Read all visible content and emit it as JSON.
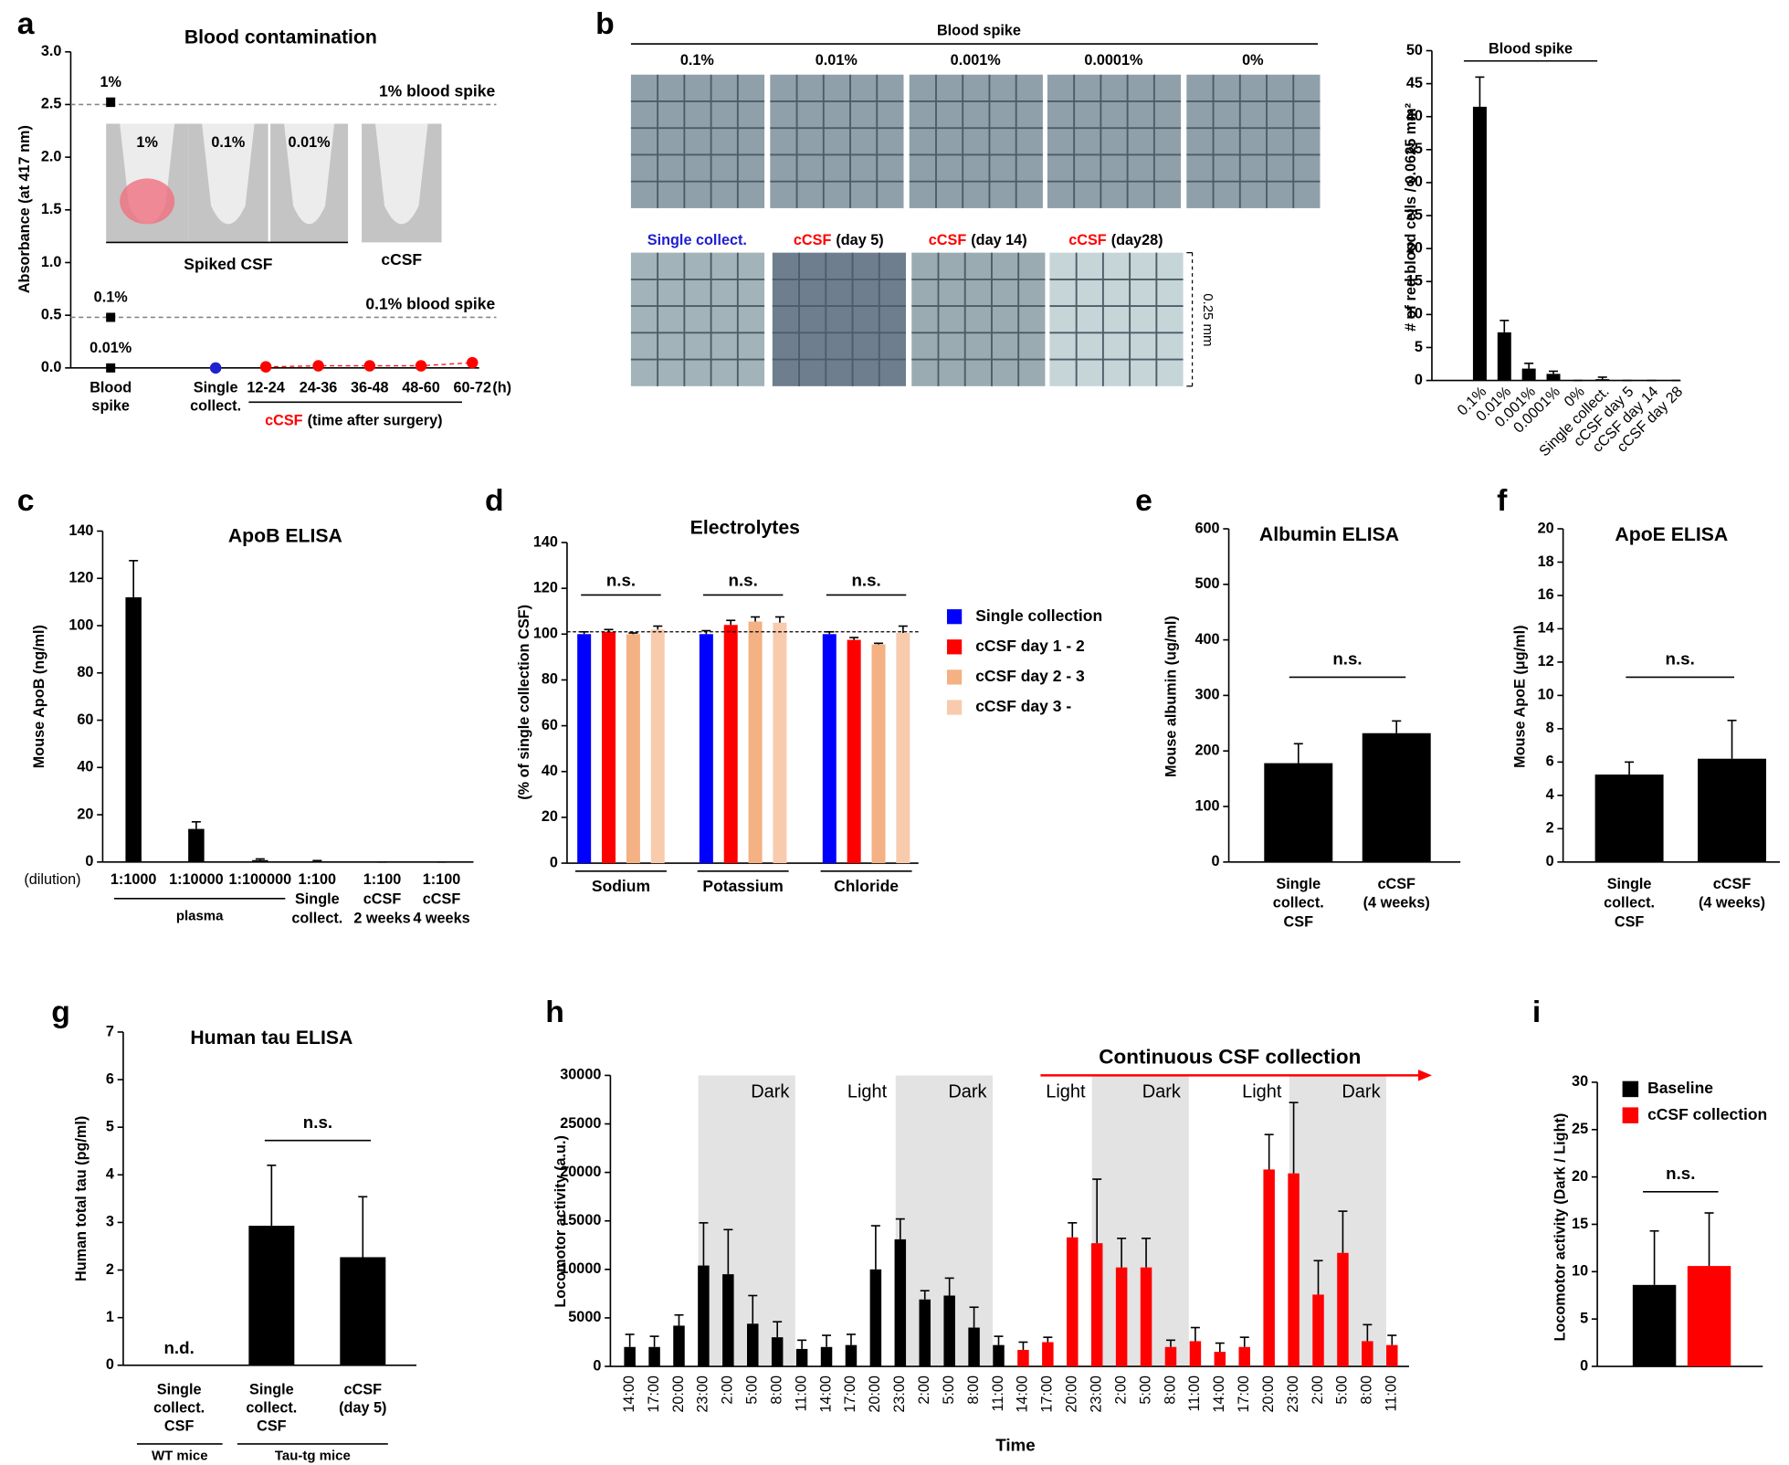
{
  "chart_data": [
    {
      "panel": "a",
      "type": "dot",
      "title": "Blood contamination",
      "ylabel": "Absorbance (at 417 nm)",
      "ylim": [
        0,
        3
      ],
      "yticks": [
        {
          "value": 0,
          "label": "0.0"
        },
        0.5,
        {
          "value": 1,
          "label": "1.0"
        },
        1.5,
        {
          "value": 2,
          "label": "2.0"
        },
        2.5,
        {
          "value": 3,
          "label": "3.0"
        }
      ],
      "categories": [
        [
          {
            "text": "Blood"
          },
          {
            "text": "spike"
          }
        ],
        [
          {
            "text": "Single",
            "color": "#2020d0"
          },
          {
            "text": "collect.",
            "color": "#2020d0"
          }
        ],
        [
          {
            "text": "12-24"
          }
        ],
        [
          {
            "text": "24-36"
          }
        ],
        [
          {
            "text": "36-48"
          }
        ],
        [
          {
            "text": "48-60"
          }
        ],
        [
          {
            "text": "60-72"
          }
        ]
      ],
      "x_unit": "(h)",
      "group_label": [
        {
          "text": "cCSF",
          "color": "#ff0000"
        },
        {
          "text": "(time after surgery)"
        }
      ],
      "spike_values": [
        2.52,
        0.48,
        0
      ],
      "spike_errors": [
        0.04,
        0.01,
        0.01
      ],
      "spike_labels": [
        "1%",
        "0.1%",
        "0.01%"
      ],
      "single_value": 0,
      "ccsf_values": [
        0.01,
        0.02,
        0.02,
        0.02,
        0.05
      ],
      "colors": {
        "spike": "#000000",
        "single": "#2020d0",
        "ccsf": "#ff0000"
      },
      "reference_lines": [
        {
          "value": 2.5,
          "label": "1% blood spike"
        },
        {
          "value": 0.48,
          "label": "0.1% blood spike"
        }
      ],
      "inset_labels": [
        "1%",
        "0.1%",
        "0.01%"
      ],
      "inset_groups": [
        {
          "text": "Spiked CSF"
        },
        {
          "text": "cCSF",
          "color": "#ff0000"
        }
      ]
    },
    {
      "panel": "b",
      "type": "micrograph",
      "header": "Blood spike",
      "top_labels": [
        "0.1%",
        "0.01%",
        "0.001%",
        "0.0001%",
        "0%"
      ],
      "bottom_labels": [
        [
          {
            "text": "Single collect.",
            "color": "#2020d0"
          }
        ],
        [
          {
            "text": "cCSF",
            "color": "#ff0000"
          },
          {
            "text": "(day 5)"
          }
        ],
        [
          {
            "text": "cCSF",
            "color": "#ff0000"
          },
          {
            "text": "(day 14)"
          }
        ],
        [
          {
            "text": "cCSF",
            "color": "#ff0000"
          },
          {
            "text": "(day28)"
          }
        ]
      ],
      "scale_label": "0.25 mm"
    },
    {
      "type": "bar",
      "ylabel": "# of red blood cells / 0.0625 mm²",
      "ylim": [
        0,
        50
      ],
      "yticks": [
        0,
        5,
        10,
        15,
        20,
        25,
        30,
        35,
        40,
        45,
        50
      ],
      "categories": [
        "0.1%",
        "0.01%",
        "0.001%",
        "0.0001%",
        "0%",
        "Single collect.",
        "cCSF day 5",
        "cCSF day 14",
        "cCSF day 28"
      ],
      "values": [
        41.5,
        7.3,
        1.8,
        1.0,
        0,
        0.2,
        0,
        0,
        0
      ],
      "errors": [
        4.5,
        1.8,
        0.8,
        0.4,
        0,
        0.3,
        0,
        0,
        0
      ],
      "color": "#000000",
      "label_rotation": -45,
      "bracket_label": "Blood spike"
    },
    {
      "panel": "c",
      "type": "bar",
      "title": "ApoB ELISA",
      "ylabel": "Mouse ApoB (ng/ml)",
      "ylim": [
        0,
        140
      ],
      "yticks": [
        0,
        20,
        40,
        60,
        80,
        100,
        120,
        140
      ],
      "x_prefix": "(dilution)",
      "categories": [
        [
          {
            "text": "1:1000"
          }
        ],
        [
          {
            "text": "1:10000"
          }
        ],
        [
          {
            "text": "1:100000"
          }
        ],
        [
          {
            "text": "1:100"
          },
          {
            "text": "Single",
            "color": "#2020d0"
          },
          {
            "text": "collect.",
            "color": "#2020d0"
          }
        ],
        [
          {
            "text": "1:100"
          },
          {
            "text": "cCSF",
            "color": "#ff0000"
          },
          {
            "text": "2 weeks"
          }
        ],
        [
          {
            "text": "1:100"
          },
          {
            "text": "cCSF",
            "color": "#ff0000"
          },
          {
            "text": "4 weeks"
          }
        ]
      ],
      "values": [
        112,
        14,
        0.8,
        0.3,
        0,
        0
      ],
      "errors": [
        15.5,
        3,
        0.5,
        0.3,
        0,
        0
      ],
      "color": "#000000",
      "groups": [
        "plasma"
      ]
    },
    {
      "panel": "d",
      "type": "grouped_bar",
      "title": "Electrolytes",
      "ylabel": "(% of single collection CSF)",
      "ylim": [
        0,
        140
      ],
      "yticks": [
        0,
        20,
        40,
        60,
        80,
        100,
        120,
        140
      ],
      "categories": [
        "Sodium",
        "Potassium",
        "Chloride"
      ],
      "series": [
        {
          "name": "Single collection",
          "color": "#0000ff",
          "values": [
            100,
            100,
            100
          ],
          "errors": [
            1,
            1.5,
            1
          ]
        },
        {
          "name": "cCSF day 1 - 2",
          "color": "#ff0000",
          "values": [
            101,
            104,
            97.5
          ],
          "errors": [
            1,
            2,
            1
          ]
        },
        {
          "name": "cCSF day 2 - 3",
          "color": "#f4b183",
          "values": [
            100,
            105.5,
            95.5
          ],
          "errors": [
            0.5,
            2,
            0.5
          ]
        },
        {
          "name": "cCSF day 3 -",
          "color": "#f8cbad",
          "values": [
            102,
            105,
            100.5
          ],
          "errors": [
            1.5,
            2.5,
            3
          ]
        }
      ],
      "reference_line": 101,
      "significance": [
        "n.s.",
        "n.s.",
        "n.s."
      ]
    },
    {
      "panel": "e",
      "type": "bar",
      "title": "Albumin ELISA",
      "ylabel": "Mouse albumin (ug/ml)",
      "ylim": [
        0,
        600
      ],
      "yticks": [
        0,
        100,
        200,
        300,
        400,
        500,
        600
      ],
      "categories": [
        [
          {
            "text": "Single",
            "color": "#2020d0"
          },
          {
            "text": "collect.",
            "color": "#2020d0"
          },
          {
            "text": "CSF",
            "color": "#2020d0"
          }
        ],
        [
          {
            "text": "cCSF",
            "color": "#ff0000"
          },
          {
            "text": "(4 weeks)"
          }
        ]
      ],
      "values": [
        178,
        232
      ],
      "errors": [
        35,
        22
      ],
      "color": "#000000",
      "significance": [
        "n.s."
      ]
    },
    {
      "panel": "f",
      "type": "bar",
      "title": "ApoE ELISA",
      "ylabel": "Mouse ApoE (μg/ml)",
      "ylim": [
        0,
        20
      ],
      "yticks": [
        0,
        2,
        4,
        6,
        8,
        10,
        12,
        14,
        16,
        18,
        20
      ],
      "categories": [
        [
          {
            "text": "Single",
            "color": "#2020d0"
          },
          {
            "text": "collect.",
            "color": "#2020d0"
          },
          {
            "text": "CSF",
            "color": "#2020d0"
          }
        ],
        [
          {
            "text": "cCSF",
            "color": "#ff0000"
          },
          {
            "text": "(4 weeks)"
          }
        ]
      ],
      "values": [
        5.25,
        6.2
      ],
      "errors": [
        0.75,
        2.3
      ],
      "color": "#000000",
      "significance": [
        "n.s."
      ]
    },
    {
      "panel": "g",
      "type": "bar",
      "title": "Human tau ELISA",
      "ylabel": "Human total tau (pg/ml)",
      "ylim": [
        0,
        7
      ],
      "yticks": [
        0,
        1,
        2,
        3,
        4,
        5,
        6,
        7
      ],
      "categories": [
        [
          {
            "text": "Single",
            "color": "#2020d0"
          },
          {
            "text": "collect.",
            "color": "#2020d0"
          },
          {
            "text": "CSF",
            "color": "#2020d0"
          }
        ],
        [
          {
            "text": "Single",
            "color": "#2020d0"
          },
          {
            "text": "collect.",
            "color": "#2020d0"
          },
          {
            "text": "CSF",
            "color": "#2020d0"
          }
        ],
        [
          {
            "text": "cCSF",
            "color": "#ff0000"
          },
          {
            "text": "(day 5)"
          }
        ]
      ],
      "values": [
        null,
        2.93,
        2.27
      ],
      "errors": [
        null,
        1.27,
        1.27
      ],
      "value_labels": [
        "n.d.",
        null,
        null
      ],
      "color": "#000000",
      "groups": [
        "WT mice",
        "Tau-tg mice"
      ],
      "significance": [
        "n.s."
      ]
    },
    {
      "panel": "h",
      "type": "bar",
      "ylabel": "Locomotor activity (a.u.)",
      "xlabel": "Time",
      "ylim": [
        0,
        30000
      ],
      "yticks": [
        0,
        5000,
        10000,
        15000,
        20000,
        25000,
        30000
      ],
      "categories": [
        "14:00",
        "17:00",
        "20:00",
        "23:00",
        "2:00",
        "5:00",
        "8:00",
        "11:00",
        "14:00",
        "17:00",
        "20:00",
        "23:00",
        "2:00",
        "5:00",
        "8:00",
        "11:00",
        "14:00",
        "17:00",
        "20:00",
        "23:00",
        "2:00",
        "5:00",
        "8:00",
        "11:00",
        "14:00",
        "17:00",
        "20:00",
        "23:00",
        "2:00",
        "5:00",
        "8:00",
        "11:00"
      ],
      "values": [
        2000,
        2000,
        4200,
        10400,
        9500,
        4400,
        3000,
        1800,
        2000,
        2200,
        10000,
        13100,
        6900,
        7300,
        4000,
        2200,
        1700,
        2500,
        13300,
        12700,
        10200,
        10200,
        2000,
        2600,
        1500,
        2000,
        20300,
        19900,
        7400,
        11700,
        2600,
        2200
      ],
      "errors": [
        1300,
        1100,
        1100,
        4400,
        4600,
        2900,
        1600,
        900,
        1200,
        1100,
        4500,
        2100,
        900,
        1800,
        2100,
        900,
        800,
        500,
        1500,
        6600,
        3000,
        3000,
        700,
        1400,
        900,
        1000,
        3600,
        7300,
        3500,
        4300,
        1700,
        1000
      ],
      "colors": [
        "#000000",
        "#000000",
        "#000000",
        "#000000",
        "#000000",
        "#000000",
        "#000000",
        "#000000",
        "#000000",
        "#000000",
        "#000000",
        "#000000",
        "#000000",
        "#000000",
        "#000000",
        "#000000",
        "#ff0000",
        "#ff0000",
        "#ff0000",
        "#ff0000",
        "#ff0000",
        "#ff0000",
        "#ff0000",
        "#ff0000",
        "#ff0000",
        "#ff0000",
        "#ff0000",
        "#ff0000",
        "#ff0000",
        "#ff0000",
        "#ff0000",
        "#ff0000"
      ],
      "label_rotation": -90,
      "period_labels": [
        "Dark",
        "Light",
        "Dark",
        "Light",
        "Dark",
        "Light",
        "Dark"
      ],
      "arrow_label": "Continuous CSF collection"
    },
    {
      "panel": "i",
      "type": "bar",
      "ylabel": "Locomotor activity (Dark / Light)",
      "ylim": [
        0,
        30
      ],
      "yticks": [
        0,
        5,
        10,
        15,
        20,
        25,
        30
      ],
      "values": [
        8.6,
        10.6
      ],
      "errors": [
        5.7,
        5.6
      ],
      "colors": [
        "#000000",
        "#ff0000"
      ],
      "legend": [
        "Baseline",
        "cCSF collection"
      ],
      "significance": [
        "n.s."
      ]
    }
  ]
}
